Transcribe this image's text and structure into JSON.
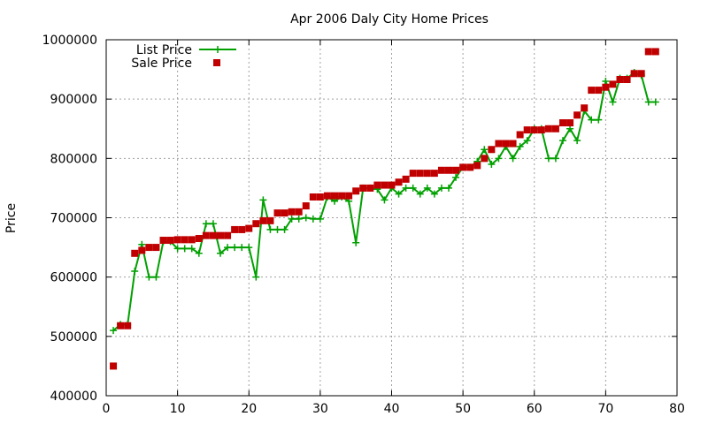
{
  "chart_data": {
    "type": "line",
    "title": "Apr 2006 Daly City Home Prices",
    "xlabel": "",
    "ylabel": "Price",
    "xlim": [
      0,
      80
    ],
    "ylim": [
      400000,
      1000000
    ],
    "xticks": [
      0,
      10,
      20,
      30,
      40,
      50,
      60,
      70,
      80
    ],
    "yticks": [
      400000,
      500000,
      600000,
      700000,
      800000,
      900000,
      1000000
    ],
    "grid": true,
    "legend_position": "top-left",
    "series": [
      {
        "name": "List Price",
        "style": "line-with-plus-markers",
        "color": "#00a000",
        "x": [
          1,
          2,
          3,
          4,
          5,
          6,
          7,
          8,
          9,
          10,
          11,
          12,
          13,
          14,
          15,
          16,
          17,
          18,
          19,
          20,
          21,
          22,
          23,
          24,
          25,
          26,
          27,
          28,
          29,
          30,
          31,
          32,
          33,
          34,
          35,
          36,
          37,
          38,
          39,
          40,
          41,
          42,
          43,
          44,
          45,
          46,
          47,
          48,
          49,
          50,
          51,
          52,
          53,
          54,
          55,
          56,
          57,
          58,
          59,
          60,
          61,
          62,
          63,
          64,
          65,
          66,
          67,
          68,
          69,
          70,
          71,
          72,
          73,
          74,
          75,
          76,
          77
        ],
        "y": [
          510000,
          520000,
          520000,
          610000,
          655000,
          600000,
          600000,
          660000,
          660000,
          648000,
          648000,
          648000,
          640000,
          690000,
          690000,
          640000,
          650000,
          650000,
          650000,
          650000,
          600000,
          730000,
          680000,
          680000,
          680000,
          698000,
          698000,
          700000,
          698000,
          698000,
          735000,
          728000,
          735000,
          728000,
          658000,
          750000,
          750000,
          748000,
          730000,
          750000,
          740000,
          750000,
          750000,
          740000,
          750000,
          740000,
          750000,
          750000,
          768000,
          785000,
          785000,
          795000,
          815000,
          790000,
          800000,
          820000,
          800000,
          820000,
          830000,
          850000,
          850000,
          800000,
          800000,
          830000,
          850000,
          830000,
          880000,
          865000,
          865000,
          930000,
          895000,
          935000,
          935000,
          945000,
          940000,
          895000,
          895000
        ]
      },
      {
        "name": "Sale Price",
        "style": "square-markers",
        "color": "#c00000",
        "x": [
          1,
          2,
          3,
          4,
          5,
          6,
          7,
          8,
          9,
          10,
          11,
          12,
          13,
          14,
          15,
          16,
          17,
          18,
          19,
          20,
          21,
          22,
          23,
          24,
          25,
          26,
          27,
          28,
          29,
          30,
          31,
          32,
          33,
          34,
          35,
          36,
          37,
          38,
          39,
          40,
          41,
          42,
          43,
          44,
          45,
          46,
          47,
          48,
          49,
          50,
          51,
          52,
          53,
          54,
          55,
          56,
          57,
          58,
          59,
          60,
          61,
          62,
          63,
          64,
          65,
          66,
          67,
          68,
          69,
          70,
          71,
          72,
          73,
          74,
          75,
          76,
          77
        ],
        "y": [
          450000,
          518000,
          518000,
          640000,
          645000,
          650000,
          650000,
          662000,
          662000,
          663000,
          663000,
          663000,
          665000,
          670000,
          670000,
          670000,
          670000,
          680000,
          680000,
          682000,
          690000,
          695000,
          695000,
          708000,
          708000,
          710000,
          710000,
          720000,
          735000,
          735000,
          737000,
          737000,
          737000,
          737000,
          745000,
          750000,
          750000,
          755000,
          755000,
          755000,
          760000,
          765000,
          775000,
          775000,
          775000,
          775000,
          780000,
          780000,
          780000,
          785000,
          785000,
          788000,
          800000,
          815000,
          825000,
          825000,
          825000,
          840000,
          848000,
          848000,
          848000,
          850000,
          850000,
          860000,
          860000,
          873000,
          885000,
          915000,
          915000,
          920000,
          925000,
          933000,
          933000,
          943000,
          943000,
          980000,
          980000
        ]
      }
    ]
  }
}
